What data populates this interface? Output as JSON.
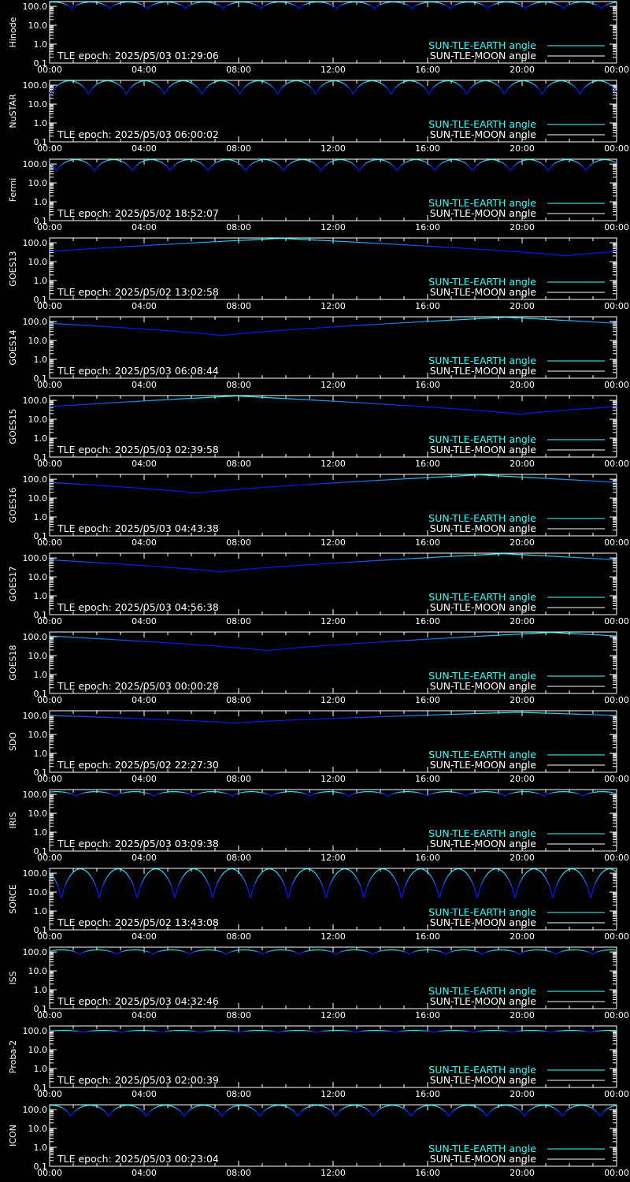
{
  "legend": {
    "earth_label": "SUN-TLE-EARTH angle",
    "moon_label": "SUN-TLE-MOON angle"
  },
  "colors": {
    "background": "#000000",
    "axes": "#ffffff",
    "earth": "#33ffff",
    "moon": "#ffffff",
    "curve_low": "#0a1aff"
  },
  "chart_data": [
    {
      "type": "line",
      "satellite": "Hinode",
      "epoch_label": "TLE epoch: 2025/05/03 01:29:06",
      "xlabels": [
        "00:00",
        "04:00",
        "08:00",
        "12:00",
        "16:00",
        "20:00",
        "00:00"
      ],
      "ylabels": [
        "100.0",
        "10.0",
        "1.0",
        "0.1"
      ],
      "yscale": "log",
      "ylim": [
        0.1,
        180
      ],
      "xlim_hours": [
        0,
        24
      ],
      "series": [
        {
          "kind": "orbit",
          "period_hours": 1.6,
          "phase_hours": 0.15,
          "min": 70,
          "max": 170
        }
      ]
    },
    {
      "type": "line",
      "satellite": "NuSTAR",
      "epoch_label": "TLE epoch: 2025/05/03 06:00:02",
      "xlabels": [
        "00:00",
        "04:00",
        "08:00",
        "12:00",
        "16:00",
        "20:00",
        "00:00"
      ],
      "ylabels": [
        "100.0",
        "10.0",
        "1.0",
        "0.1"
      ],
      "yscale": "log",
      "ylim": [
        0.1,
        180
      ],
      "xlim_hours": [
        0,
        24
      ],
      "series": [
        {
          "kind": "orbit",
          "period_hours": 1.6,
          "phase_hours": 0.85,
          "min": 25,
          "max": 170
        }
      ]
    },
    {
      "type": "line",
      "satellite": "Fermi",
      "epoch_label": "TLE epoch: 2025/05/02 18:52:07",
      "xlabels": [
        "00:00",
        "04:00",
        "08:00",
        "12:00",
        "16:00",
        "20:00",
        "00:00"
      ],
      "ylabels": [
        "100.0",
        "10.0",
        "1.0",
        "0.1"
      ],
      "yscale": "log",
      "ylim": [
        0.1,
        180
      ],
      "xlim_hours": [
        0,
        24
      ],
      "series": [
        {
          "kind": "orbit",
          "period_hours": 1.6,
          "phase_hours": 1.1,
          "min": 35,
          "max": 170
        }
      ]
    },
    {
      "type": "line",
      "satellite": "GOES13",
      "epoch_label": "TLE epoch: 2025/05/02 13:02:58",
      "xlabels": [
        "00:00",
        "04:00",
        "08:00",
        "12:00",
        "16:00",
        "20:00",
        "00:00"
      ],
      "ylabels": [
        "100.0",
        "10.0",
        "1.0",
        "0.1"
      ],
      "yscale": "log",
      "ylim": [
        0.1,
        180
      ],
      "xlim_hours": [
        0,
        24
      ],
      "series": [
        {
          "kind": "geo",
          "min_hour": 21.8,
          "min": 20,
          "max": 172
        }
      ]
    },
    {
      "type": "line",
      "satellite": "GOES14",
      "epoch_label": "TLE epoch: 2025/05/03 06:08:44",
      "xlabels": [
        "00:00",
        "04:00",
        "08:00",
        "12:00",
        "16:00",
        "20:00",
        "00:00"
      ],
      "ylabels": [
        "100.0",
        "10.0",
        "1.0",
        "0.1"
      ],
      "yscale": "log",
      "ylim": [
        0.1,
        180
      ],
      "xlim_hours": [
        0,
        24
      ],
      "series": [
        {
          "kind": "geo",
          "min_hour": 7.3,
          "min": 18,
          "max": 170
        }
      ]
    },
    {
      "type": "line",
      "satellite": "GOES15",
      "epoch_label": "TLE epoch: 2025/05/03 02:39:58",
      "xlabels": [
        "00:00",
        "04:00",
        "08:00",
        "12:00",
        "16:00",
        "20:00",
        "00:00"
      ],
      "ylabels": [
        "100.0",
        "10.0",
        "1.0",
        "0.1"
      ],
      "yscale": "log",
      "ylim": [
        0.1,
        180
      ],
      "xlim_hours": [
        0,
        24
      ],
      "series": [
        {
          "kind": "geo",
          "min_hour": 19.9,
          "min": 18,
          "max": 172
        }
      ]
    },
    {
      "type": "line",
      "satellite": "GOES16",
      "epoch_label": "TLE epoch: 2025/05/03 04:43:38",
      "xlabels": [
        "00:00",
        "04:00",
        "08:00",
        "12:00",
        "16:00",
        "20:00",
        "00:00"
      ],
      "ylabels": [
        "100.0",
        "10.0",
        "1.0",
        "0.1"
      ],
      "yscale": "log",
      "ylim": [
        0.1,
        180
      ],
      "xlim_hours": [
        0,
        24
      ],
      "series": [
        {
          "kind": "geo",
          "min_hour": 6.2,
          "min": 18,
          "max": 170
        }
      ]
    },
    {
      "type": "line",
      "satellite": "GOES17",
      "epoch_label": "TLE epoch: 2025/05/03 04:56:38",
      "xlabels": [
        "00:00",
        "04:00",
        "08:00",
        "12:00",
        "16:00",
        "20:00",
        "00:00"
      ],
      "ylabels": [
        "100.0",
        "10.0",
        "1.0",
        "0.1"
      ],
      "yscale": "log",
      "ylim": [
        0.1,
        180
      ],
      "xlim_hours": [
        0,
        24
      ],
      "series": [
        {
          "kind": "geo",
          "min_hour": 7.2,
          "min": 18,
          "max": 170
        }
      ]
    },
    {
      "type": "line",
      "satellite": "GOES18",
      "epoch_label": "TLE epoch: 2025/05/03 00:00:28",
      "xlabels": [
        "00:00",
        "04:00",
        "08:00",
        "12:00",
        "16:00",
        "20:00",
        "00:00"
      ],
      "ylabels": [
        "100.0",
        "10.0",
        "1.0",
        "0.1"
      ],
      "yscale": "log",
      "ylim": [
        0.1,
        180
      ],
      "xlim_hours": [
        0,
        24
      ],
      "series": [
        {
          "kind": "geo",
          "min_hour": 9.2,
          "min": 18,
          "max": 170
        }
      ]
    },
    {
      "type": "line",
      "satellite": "SDO",
      "epoch_label": "TLE epoch: 2025/05/02 22:27:30",
      "xlabels": [
        "00:00",
        "04:00",
        "08:00",
        "12:00",
        "16:00",
        "20:00",
        "00:00"
      ],
      "ylabels": [
        "100.0",
        "10.0",
        "1.0",
        "0.1"
      ],
      "yscale": "log",
      "ylim": [
        0.1,
        180
      ],
      "xlim_hours": [
        0,
        24
      ],
      "series": [
        {
          "kind": "geo",
          "min_hour": 7.8,
          "min": 40,
          "max": 150
        }
      ]
    },
    {
      "type": "line",
      "satellite": "IRIS",
      "epoch_label": "TLE epoch: 2025/05/03 03:09:38",
      "xlabels": [
        "00:00",
        "04:00",
        "08:00",
        "12:00",
        "16:00",
        "20:00",
        "00:00"
      ],
      "ylabels": [
        "100.0",
        "10.0",
        "1.0",
        "0.1"
      ],
      "yscale": "log",
      "ylim": [
        0.1,
        180
      ],
      "xlim_hours": [
        0,
        24
      ],
      "series": [
        {
          "kind": "orbit",
          "period_hours": 1.65,
          "phase_hours": 0.3,
          "min": 75,
          "max": 140
        }
      ]
    },
    {
      "type": "line",
      "satellite": "SORCE",
      "epoch_label": "TLE epoch: 2025/05/02 13:43:08",
      "xlabels": [
        "00:00",
        "04:00",
        "08:00",
        "12:00",
        "16:00",
        "20:00",
        "00:00"
      ],
      "ylabels": [
        "100.0",
        "10.0",
        "1.0",
        "0.1"
      ],
      "yscale": "log",
      "ylim": [
        0.1,
        180
      ],
      "xlim_hours": [
        0,
        24
      ],
      "series": [
        {
          "kind": "orbit",
          "period_hours": 1.6,
          "phase_hours": 1.3,
          "min": 2.5,
          "max": 170
        }
      ]
    },
    {
      "type": "line",
      "satellite": "ISS",
      "epoch_label": "TLE epoch: 2025/05/03 04:32:46",
      "xlabels": [
        "00:00",
        "04:00",
        "08:00",
        "12:00",
        "16:00",
        "20:00",
        "00:00"
      ],
      "ylabels": [
        "100.0",
        "10.0",
        "1.0",
        "0.1"
      ],
      "yscale": "log",
      "ylim": [
        0.1,
        180
      ],
      "xlim_hours": [
        0,
        24
      ],
      "series": [
        {
          "kind": "orbit",
          "period_hours": 1.55,
          "phase_hours": 0.5,
          "min": 70,
          "max": 130
        }
      ]
    },
    {
      "type": "line",
      "satellite": "Proba-2",
      "epoch_label": "TLE epoch: 2025/05/03 02:00:39",
      "xlabels": [
        "00:00",
        "04:00",
        "08:00",
        "12:00",
        "16:00",
        "20:00",
        "00:00"
      ],
      "ylabels": [
        "100.0",
        "10.0",
        "1.0",
        "0.1"
      ],
      "yscale": "log",
      "ylim": [
        0.1,
        180
      ],
      "xlim_hours": [
        0,
        24
      ],
      "series": [
        {
          "kind": "orbit",
          "period_hours": 1.65,
          "phase_hours": 0.6,
          "min": 80,
          "max": 105
        }
      ]
    },
    {
      "type": "line",
      "satellite": "ICON",
      "epoch_label": "TLE epoch: 2025/05/03 00:23:04",
      "xlabels": [
        "00:00",
        "04:00",
        "08:00",
        "12:00",
        "16:00",
        "20:00",
        "00:00"
      ],
      "ylabels": [
        "100.0",
        "10.0",
        "1.0",
        "0.1"
      ],
      "yscale": "log",
      "ylim": [
        0.1,
        180
      ],
      "xlim_hours": [
        0,
        24
      ],
      "series": [
        {
          "kind": "orbit",
          "period_hours": 1.6,
          "phase_hours": 0.1,
          "min": 35,
          "max": 170
        }
      ]
    }
  ]
}
